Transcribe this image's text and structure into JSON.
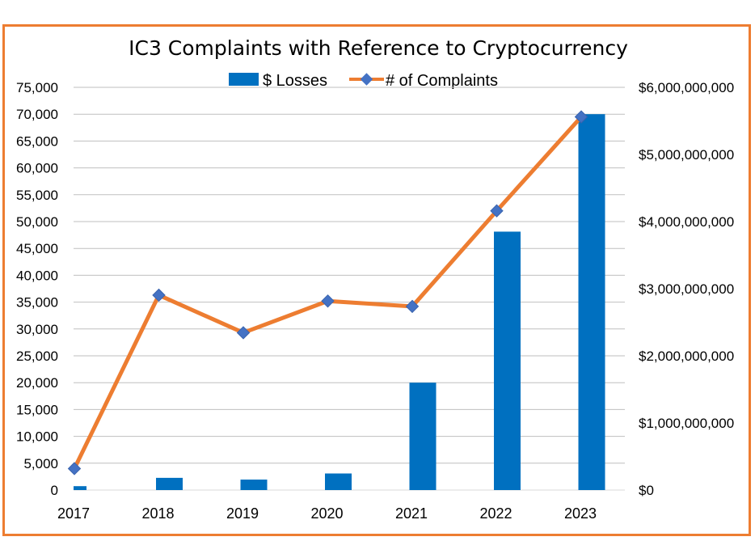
{
  "colors": {
    "frame": "#ED7D31",
    "bars": "#0070C0",
    "line": "#ED7D31",
    "marker": "#4472C4",
    "grid": "#BFBFBF"
  },
  "chart_data": {
    "type": "bar",
    "title": "IC3 Complaints with Reference to Cryptocurrency",
    "categories": [
      "2017",
      "2018",
      "2019",
      "2020",
      "2021",
      "2022",
      "2023"
    ],
    "series": [
      {
        "name": "$ Losses",
        "type": "bar",
        "axis": "right",
        "values": [
          58000000,
          182000000,
          156000000,
          247000000,
          1600000000,
          3850000000,
          5600000000
        ]
      },
      {
        "name": "# of Complaints",
        "type": "line",
        "marker": "diamond",
        "axis": "left",
        "values": [
          4000,
          36300,
          29300,
          35200,
          34200,
          52000,
          69500
        ]
      }
    ],
    "left_axis": {
      "ylim": [
        0,
        75000
      ],
      "ticks": [
        "0",
        "5,000",
        "10,000",
        "15,000",
        "20,000",
        "25,000",
        "30,000",
        "35,000",
        "40,000",
        "45,000",
        "50,000",
        "55,000",
        "60,000",
        "65,000",
        "70,000",
        "75,000"
      ]
    },
    "right_axis": {
      "ylim": [
        0,
        6000000000
      ],
      "ticks": [
        "$0",
        "$1,000,000,000",
        "$2,000,000,000",
        "$3,000,000,000",
        "$4,000,000,000",
        "$5,000,000,000",
        "$6,000,000,000"
      ]
    },
    "legend": [
      "$ Losses",
      "# of Complaints"
    ],
    "legend_position": "top",
    "grid": true
  }
}
